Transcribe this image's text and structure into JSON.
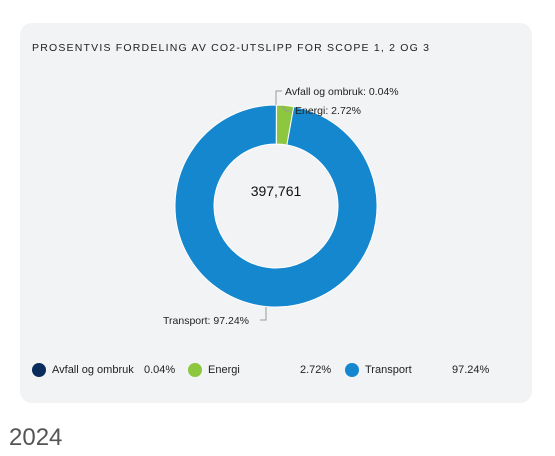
{
  "chart_data": {
    "type": "pie",
    "title": "PROSENTVIS FORDELING AV CO2-UTSLIPP FOR SCOPE 1, 2 OG 3",
    "total": "397,761",
    "slices": [
      {
        "name": "Avfall og ombruk",
        "percent": 0.04,
        "label": "0.04%",
        "color": "#0a2c5c"
      },
      {
        "name": "Energi",
        "percent": 2.72,
        "label": "2.72%",
        "color": "#8dc63f"
      },
      {
        "name": "Transport",
        "percent": 97.24,
        "label": "97.24%",
        "color": "#1487cf"
      }
    ],
    "callouts": [
      "Avfall og ombruk: 0.04%",
      "Energi: 2.72%",
      "Transport: 97.24%"
    ],
    "legend_position": "bottom"
  },
  "year_label": "2024"
}
